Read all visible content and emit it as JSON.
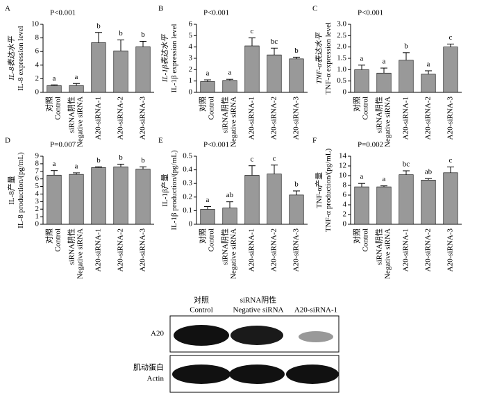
{
  "chart_data": [
    {
      "type": "bar",
      "panel": "A",
      "annotation": "P<0.001",
      "ylabel": [
        "IL-8表达水平",
        "IL-8 expression level"
      ],
      "categories": [
        [
          "对照",
          "Control"
        ],
        [
          "siRNA阴性",
          "Negative siRNA"
        ],
        [
          "A20-siRNA-1"
        ],
        [
          "A20-siRNA-2"
        ],
        [
          "A20-siRNA-3"
        ]
      ],
      "values": [
        1.0,
        1.0,
        7.3,
        6.1,
        6.7
      ],
      "errors": [
        0.1,
        0.3,
        1.5,
        1.6,
        0.8
      ],
      "letters": [
        "a",
        "a",
        "b",
        "b",
        "b"
      ],
      "color": "#999999",
      "ylim": [
        0,
        10
      ],
      "yticks": [
        0,
        2,
        4,
        6,
        8,
        10
      ]
    },
    {
      "type": "bar",
      "panel": "B",
      "annotation": "P<0.001",
      "ylabel": [
        "IL-1β表达水平",
        "IL-1β expression level"
      ],
      "categories": [
        [
          "对照",
          "Control"
        ],
        [
          "siRNA阴性",
          "Negative siRNA"
        ],
        [
          "A20-siRNA-1"
        ],
        [
          "A20-siRNA-2"
        ],
        [
          "A20-siRNA-3"
        ]
      ],
      "values": [
        0.95,
        1.05,
        4.1,
        3.3,
        2.95
      ],
      "errors": [
        0.15,
        0.1,
        0.7,
        0.6,
        0.15
      ],
      "letters": [
        "a",
        "a",
        "c",
        "bc",
        "b"
      ],
      "color": "#999999",
      "ylim": [
        0,
        6
      ],
      "yticks": [
        0,
        1,
        2,
        3,
        4,
        5,
        6
      ]
    },
    {
      "type": "bar",
      "panel": "C",
      "annotation": "P<0.001",
      "ylabel": [
        "TNF-α表达水平",
        "TNF-α expression level"
      ],
      "categories": [
        [
          "对照",
          "Control"
        ],
        [
          "siRNA阴性",
          "Negative siRNA"
        ],
        [
          "A20-siRNA-1"
        ],
        [
          "A20-siRNA-2"
        ],
        [
          "A20-siRNA-3"
        ]
      ],
      "values": [
        1.0,
        0.85,
        1.42,
        0.8,
        2.0
      ],
      "errors": [
        0.2,
        0.22,
        0.33,
        0.15,
        0.13
      ],
      "letters": [
        "a",
        "a",
        "b",
        "a",
        "c"
      ],
      "color": "#999999",
      "ylim": [
        0,
        3
      ],
      "yticks": [
        0,
        0.5,
        {
          "value": 1,
          "label": "1.0"
        },
        1.5,
        {
          "value": 2,
          "label": "2.0"
        },
        2.5,
        {
          "value": 3,
          "label": "3.0"
        }
      ]
    },
    {
      "type": "bar",
      "panel": "D",
      "annotation": "P=0.007",
      "ylabel": [
        "IL-8产量",
        "IL-8 production/(pg/mL)"
      ],
      "categories": [
        [
          "对照",
          "Control"
        ],
        [
          "siRNA阴性",
          "Negative siRNA"
        ],
        [
          "A20-siRNA-1"
        ],
        [
          "A20-siRNA-2"
        ],
        [
          "A20-siRNA-3"
        ]
      ],
      "values": [
        6.5,
        6.6,
        7.5,
        7.6,
        7.3
      ],
      "errors": [
        0.6,
        0.2,
        0.1,
        0.35,
        0.3
      ],
      "letters": [
        "a",
        "a",
        "b",
        "b",
        "b"
      ],
      "color": "#999999",
      "ylim": [
        0,
        9
      ],
      "yticks": [
        0,
        1,
        2,
        3,
        4,
        5,
        6,
        7,
        8,
        9
      ]
    },
    {
      "type": "bar",
      "panel": "E",
      "annotation": "P<0.001",
      "ylabel": [
        "IL-1β产量",
        "IL-1β production/(pg/mL)"
      ],
      "categories": [
        [
          "对照",
          "Control"
        ],
        [
          "siRNA阴性",
          "Negative siRNA"
        ],
        [
          "A20-siRNA-1"
        ],
        [
          "A20-siRNA-2"
        ],
        [
          "A20-siRNA-3"
        ]
      ],
      "values": [
        0.11,
        0.12,
        0.36,
        0.37,
        0.215
      ],
      "errors": [
        0.02,
        0.045,
        0.07,
        0.065,
        0.03
      ],
      "letters": [
        "a",
        "ab",
        "c",
        "c",
        "b"
      ],
      "color": "#999999",
      "ylim": [
        0,
        0.5
      ],
      "yticks": [
        0,
        0.1,
        0.2,
        0.3,
        0.4,
        0.5
      ]
    },
    {
      "type": "bar",
      "panel": "F",
      "annotation": "P=0.002",
      "ylabel": [
        "TNF-α产量",
        "TNF-α production/(pg/mL)"
      ],
      "categories": [
        [
          "对照",
          "Control"
        ],
        [
          "siRNA阴性",
          "Negative siRNA"
        ],
        [
          "A20-siRNA-1"
        ],
        [
          "A20-siRNA-2"
        ],
        [
          "A20-siRNA-3"
        ]
      ],
      "values": [
        7.7,
        7.7,
        10.2,
        9.1,
        10.6
      ],
      "errors": [
        0.7,
        0.2,
        0.8,
        0.3,
        1.2
      ],
      "letters": [
        "a",
        "a",
        "bc",
        "ab",
        "c"
      ],
      "color": "#999999",
      "ylim": [
        0,
        14
      ],
      "yticks": [
        0,
        2,
        4,
        6,
        8,
        10,
        12,
        14
      ]
    }
  ],
  "blot": {
    "lanes": [
      [
        "对照",
        "Control"
      ],
      [
        "siRNA阴性",
        "Negative siRNA"
      ],
      [
        "A20-siRNA-1"
      ]
    ],
    "rows": [
      "A20",
      [
        "肌动蛋白",
        "Actin"
      ]
    ]
  }
}
